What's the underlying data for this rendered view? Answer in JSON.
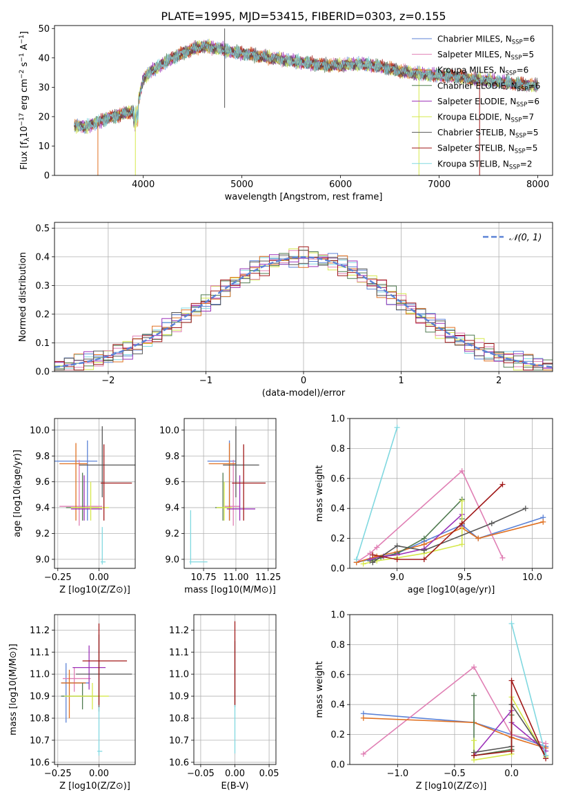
{
  "figure": {
    "title": "PLATE=1995, MJD=53415, FIBERID=0303, z=0.155"
  },
  "series_styles": [
    {
      "name": "Chabrier MILES, N_SSP=6",
      "label_main": "Chabrier MILES, N",
      "label_sub": "SSP",
      "label_tail": "=6",
      "color": "#5b82d6"
    },
    {
      "name": "Salpeter MILES, N_SSP=5",
      "label_main": "Salpeter MILES, N",
      "label_sub": "SSP",
      "label_tail": "=5",
      "color": "#e07fb4"
    },
    {
      "name": "Kroupa MILES, N_SSP=6",
      "label_main": "Kroupa MILES, N",
      "label_sub": "SSP",
      "label_tail": "=6",
      "color": "#e07020"
    },
    {
      "name": "Chabrier ELODIE, N_SSP=6",
      "label_main": "Chabrier ELODIE, N",
      "label_sub": "SSP",
      "label_tail": "=6",
      "color": "#4f7a4f"
    },
    {
      "name": "Salpeter ELODIE, N_SSP=6",
      "label_main": "Salpeter ELODIE, N",
      "label_sub": "SSP",
      "label_tail": "=6",
      "color": "#9b30b8"
    },
    {
      "name": "Kroupa ELODIE, N_SSP=7",
      "label_main": "Kroupa ELODIE, N",
      "label_sub": "SSP",
      "label_tail": "=7",
      "color": "#d5e84a"
    },
    {
      "name": "Chabrier STELIB, N_SSP=5",
      "label_main": "Chabrier STELIB, N",
      "label_sub": "SSP",
      "label_tail": "=5",
      "color": "#555555"
    },
    {
      "name": "Salpeter STELIB, N_SSP=5",
      "label_main": "Salpeter STELIB, N",
      "label_sub": "SSP",
      "label_tail": "=5",
      "color": "#a01818"
    },
    {
      "name": "Kroupa STELIB, N_SSP=2",
      "label_main": "Kroupa STELIB, N",
      "label_sub": "SSP",
      "label_tail": "=2",
      "color": "#80d8e0"
    }
  ],
  "chart_data": [
    {
      "id": "spectrum",
      "type": "line",
      "title": "PLATE=1995, MJD=53415, FIBERID=0303, z=0.155",
      "xlabel": "wavelength [Angstrom, rest frame]",
      "ylabel_parts": [
        "Flux [f",
        "λ",
        "10",
        "−17",
        " erg cm",
        "−2",
        " s",
        "−1",
        " A",
        "−1",
        "]"
      ],
      "xlim": [
        3100,
        8150
      ],
      "ylim": [
        0,
        51
      ],
      "xticks": [
        4000,
        5000,
        6000,
        7000,
        8000
      ],
      "yticks": [
        0,
        10,
        20,
        30,
        40,
        50
      ],
      "grid": false,
      "legend_position": "top-right",
      "continuum": {
        "x": [
          3300,
          3400,
          3500,
          3600,
          3700,
          3800,
          3900,
          3950,
          4000,
          4100,
          4200,
          4300,
          4400,
          4500,
          4600,
          4700,
          4800,
          4900,
          5000,
          5200,
          5400,
          5600,
          5800,
          6000,
          6200,
          6400,
          6600,
          6800,
          7000,
          7200,
          7400,
          7600,
          7800,
          8000
        ],
        "y": [
          17,
          16.5,
          17.5,
          19,
          20,
          21,
          22,
          25,
          33,
          36,
          38,
          40,
          41.5,
          43,
          44,
          43.5,
          43,
          42,
          41.5,
          40.5,
          39.5,
          38.5,
          37.5,
          37.5,
          38,
          37,
          35.5,
          34.5,
          34,
          33.5,
          32.5,
          32,
          31,
          30.5
        ]
      },
      "noise_amplitude": 2.5,
      "dropouts_x": [
        3540,
        3920,
        6795,
        7410
      ],
      "spike_x": 4825
    },
    {
      "id": "residuals",
      "type": "histogram",
      "xlabel": "(data-model)/error",
      "ylabel": "Normed distribution",
      "xlim": [
        -2.55,
        2.55
      ],
      "ylim": [
        0,
        0.52
      ],
      "xticks": [
        -2,
        -1,
        0,
        1,
        2
      ],
      "yticks": [
        0,
        0.1,
        0.2,
        0.3,
        0.4,
        0.5
      ],
      "grid": true,
      "bin_width": 0.1,
      "bin_start": -2.55,
      "legend": "𝒩(0, 1)",
      "reference_curve": {
        "name": "𝒩(0, 1)",
        "mean": 0,
        "sd": 1,
        "color": "#5b82d6"
      }
    },
    {
      "id": "age_vs_Z",
      "type": "scatter",
      "xlabel": "Z [log10(Z/Z⊙)]",
      "ylabel": "age [log10(age/yr)]",
      "xlim": [
        -0.27,
        0.22
      ],
      "ylim": [
        8.93,
        10.09
      ],
      "xticks": [
        -0.25,
        0.0
      ],
      "xtick_labels": [
        "−0.25",
        "0.00"
      ],
      "yticks": [
        9.0,
        9.2,
        9.4,
        9.6,
        9.8,
        10.0
      ],
      "grid": true,
      "points": [
        {
          "series": 0,
          "x": -0.07,
          "y": 9.76,
          "xerr": [
            0.2,
            0.06
          ],
          "yerr": [
            0.46,
            0.16
          ]
        },
        {
          "series": 1,
          "x": -0.12,
          "y": 9.41,
          "xerr": [
            0.12,
            0.14
          ],
          "yerr": [
            0.15,
            0.36
          ]
        },
        {
          "series": 2,
          "x": -0.14,
          "y": 9.74,
          "xerr": [
            0.1,
            0.07
          ],
          "yerr": [
            0.44,
            0.16
          ]
        },
        {
          "series": 3,
          "x": -0.1,
          "y": 9.4,
          "xerr": [
            0.1,
            0.1
          ],
          "yerr": [
            0.1,
            0.27
          ]
        },
        {
          "series": 4,
          "x": -0.09,
          "y": 9.39,
          "xerr": [
            0.08,
            0.11
          ],
          "yerr": [
            0.09,
            0.26
          ]
        },
        {
          "series": 5,
          "x": -0.05,
          "y": 9.4,
          "xerr": [
            0.12,
            0.11
          ],
          "yerr": [
            0.1,
            0.2
          ]
        },
        {
          "series": 6,
          "x": 0.02,
          "y": 9.73,
          "xerr": [
            0.14,
            0.2
          ],
          "yerr": [
            0.25,
            0.3
          ]
        },
        {
          "series": 7,
          "x": 0.03,
          "y": 9.59,
          "xerr": [
            0.02,
            0.17
          ],
          "yerr": [
            0.29,
            0.3
          ]
        },
        {
          "series": 8,
          "x": 0.02,
          "y": 8.98,
          "xerr": [
            0.01,
            0.02
          ],
          "yerr": [
            0.02,
            0.27
          ]
        }
      ]
    },
    {
      "id": "age_vs_mass",
      "type": "scatter",
      "xlabel": "mass [log10(M/M⊙)]",
      "ylabel": "",
      "xlim": [
        10.6,
        11.31
      ],
      "ylim": [
        8.93,
        10.09
      ],
      "xticks": [
        10.75,
        11.0,
        11.25
      ],
      "xtick_labels": [
        "10.75",
        "11.00",
        "11.25"
      ],
      "yticks": [
        9.0,
        9.2,
        9.4,
        9.6,
        9.8,
        10.0
      ],
      "grid": true,
      "points": [
        {
          "series": 0,
          "x": 10.95,
          "y": 9.76,
          "xerr": [
            0.17,
            0.05
          ],
          "yerr": [
            0.46,
            0.16
          ]
        },
        {
          "series": 1,
          "x": 10.98,
          "y": 9.41,
          "xerr": [
            0.07,
            0.05
          ],
          "yerr": [
            0.15,
            0.36
          ]
        },
        {
          "series": 2,
          "x": 10.95,
          "y": 9.74,
          "xerr": [
            0.16,
            0.05
          ],
          "yerr": [
            0.44,
            0.16
          ]
        },
        {
          "series": 3,
          "x": 10.9,
          "y": 9.4,
          "xerr": [
            0.06,
            0.06
          ],
          "yerr": [
            0.1,
            0.27
          ]
        },
        {
          "series": 4,
          "x": 11.03,
          "y": 9.39,
          "xerr": [
            0.1,
            0.12
          ],
          "yerr": [
            0.09,
            0.26
          ]
        },
        {
          "series": 5,
          "x": 10.91,
          "y": 9.4,
          "xerr": [
            0.06,
            0.06
          ],
          "yerr": [
            0.1,
            0.2
          ]
        },
        {
          "series": 6,
          "x": 11.0,
          "y": 9.73,
          "xerr": [
            0.1,
            0.18
          ],
          "yerr": [
            0.25,
            0.3
          ]
        },
        {
          "series": 7,
          "x": 11.06,
          "y": 9.59,
          "xerr": [
            0.09,
            0.17
          ],
          "yerr": [
            0.29,
            0.3
          ]
        },
        {
          "series": 8,
          "x": 10.65,
          "y": 8.98,
          "xerr": [
            0.01,
            0.13
          ],
          "yerr": [
            0.02,
            0.4
          ]
        }
      ]
    },
    {
      "id": "massweight_vs_age",
      "type": "line",
      "xlabel": "age [log10(age/yr)]",
      "ylabel": "mass weight",
      "xlim": [
        8.65,
        10.15
      ],
      "ylim": [
        0,
        1.0
      ],
      "xticks": [
        9.0,
        9.5,
        10.0
      ],
      "xtick_labels": [
        "9.0",
        "9.5",
        "10.0"
      ],
      "yticks": [
        0.0,
        0.2,
        0.4,
        0.6,
        0.8,
        1.0
      ],
      "grid": true,
      "series": [
        {
          "series": 0,
          "x": [
            8.7,
            8.85,
            9.0,
            9.2,
            9.48,
            9.6,
            10.08
          ],
          "y": [
            0.04,
            0.07,
            0.1,
            0.18,
            0.29,
            0.2,
            0.34
          ]
        },
        {
          "series": 1,
          "x": [
            8.7,
            8.8,
            8.85,
            9.48,
            9.78
          ],
          "y": [
            0.04,
            0.1,
            0.14,
            0.65,
            0.07
          ]
        },
        {
          "series": 2,
          "x": [
            8.7,
            8.85,
            9.0,
            9.2,
            9.48,
            9.6,
            10.08
          ],
          "y": [
            0.04,
            0.08,
            0.11,
            0.16,
            0.27,
            0.2,
            0.31
          ]
        },
        {
          "series": 3,
          "x": [
            8.8,
            8.88,
            9.0,
            9.2,
            9.48,
            9.48
          ],
          "y": [
            0.05,
            0.07,
            0.1,
            0.2,
            0.46,
            0.33
          ]
        },
        {
          "series": 4,
          "x": [
            8.8,
            8.9,
            9.0,
            9.2,
            9.48,
            9.48
          ],
          "y": [
            0.06,
            0.08,
            0.09,
            0.13,
            0.36,
            0.28
          ]
        },
        {
          "series": 5,
          "x": [
            8.75,
            8.85,
            9.0,
            9.2,
            9.48,
            9.48,
            9.48
          ],
          "y": [
            0.03,
            0.05,
            0.07,
            0.1,
            0.16,
            0.3,
            0.45
          ]
        },
        {
          "series": 6,
          "x": [
            8.82,
            9.0,
            9.2,
            9.7,
            9.95
          ],
          "y": [
            0.04,
            0.15,
            0.12,
            0.3,
            0.4
          ]
        },
        {
          "series": 7,
          "x": [
            8.82,
            9.0,
            9.2,
            9.48,
            9.78
          ],
          "y": [
            0.09,
            0.06,
            0.06,
            0.3,
            0.56
          ]
        },
        {
          "series": 8,
          "x": [
            8.7,
            9.0
          ],
          "y": [
            0.06,
            0.94
          ]
        }
      ]
    },
    {
      "id": "mass_vs_Z",
      "type": "scatter",
      "xlabel": "Z [log10(Z/Z⊙)]",
      "ylabel": "mass [log10(M/M⊙)]",
      "xlim": [
        -0.27,
        0.22
      ],
      "ylim": [
        10.59,
        11.27
      ],
      "xticks": [
        -0.25,
        0.0
      ],
      "xtick_labels": [
        "−0.25",
        "0.00"
      ],
      "yticks": [
        10.6,
        10.7,
        10.8,
        10.9,
        11.0,
        11.1,
        11.2
      ],
      "grid": true,
      "points": [
        {
          "series": 0,
          "x": -0.2,
          "y": 10.96,
          "xerr": [
            0.03,
            0.14
          ],
          "yerr": [
            0.18,
            0.09
          ]
        },
        {
          "series": 1,
          "x": -0.15,
          "y": 10.98,
          "xerr": [
            0.07,
            0.1
          ],
          "yerr": [
            0.06,
            0.05
          ]
        },
        {
          "series": 2,
          "x": -0.18,
          "y": 10.96,
          "xerr": [
            0.05,
            0.1
          ],
          "yerr": [
            0.16,
            0.06
          ]
        },
        {
          "series": 3,
          "x": -0.1,
          "y": 10.9,
          "xerr": [
            0.13,
            0.1
          ],
          "yerr": [
            0.06,
            0.06
          ]
        },
        {
          "series": 4,
          "x": -0.06,
          "y": 11.03,
          "xerr": [
            0.1,
            0.1
          ],
          "yerr": [
            0.1,
            0.1
          ]
        },
        {
          "series": 5,
          "x": -0.04,
          "y": 10.9,
          "xerr": [
            0.17,
            0.1
          ],
          "yerr": [
            0.06,
            0.06
          ]
        },
        {
          "series": 6,
          "x": 0.0,
          "y": 11.0,
          "xerr": [
            0.14,
            0.2
          ],
          "yerr": [
            0.17,
            0.18
          ]
        },
        {
          "series": 7,
          "x": 0.0,
          "y": 11.06,
          "xerr": [
            0.1,
            0.17
          ],
          "yerr": [
            0.2,
            0.17
          ]
        },
        {
          "series": 8,
          "x": 0.0,
          "y": 10.65,
          "xerr": [
            0.01,
            0.02
          ],
          "yerr": [
            0.02,
            0.2
          ]
        }
      ]
    },
    {
      "id": "mass_vs_EBV",
      "type": "scatter",
      "xlabel": "E(B-V)",
      "ylabel": "",
      "xlim": [
        -0.06,
        0.06
      ],
      "ylim": [
        10.59,
        11.27
      ],
      "xticks": [
        -0.05,
        0.0,
        0.05
      ],
      "xtick_labels": [
        "−0.05",
        "0.00",
        "0.05"
      ],
      "yticks": [
        10.6,
        10.7,
        10.8,
        10.9,
        11.0,
        11.1,
        11.2
      ],
      "grid": true,
      "points": [
        {
          "series": 6,
          "x": 0.0,
          "y": 11.0,
          "xerr": [
            0,
            0
          ],
          "yerr": [
            0.15,
            0.15
          ]
        },
        {
          "series": 7,
          "x": 0.0,
          "y": 11.06,
          "xerr": [
            0,
            0
          ],
          "yerr": [
            0.2,
            0.18
          ]
        },
        {
          "series": 8,
          "x": 0.0,
          "y": 10.66,
          "xerr": [
            0,
            0
          ],
          "yerr": [
            0.02,
            0.2
          ]
        }
      ]
    },
    {
      "id": "massweight_vs_Z",
      "type": "line",
      "xlabel": "Z [log10(Z/Z⊙)]",
      "ylabel": "mass weight",
      "xlim": [
        -1.42,
        0.36
      ],
      "ylim": [
        0,
        1.0
      ],
      "xticks": [
        -1.0,
        -0.5,
        0.0
      ],
      "xtick_labels": [
        "−1.0",
        "−0.5",
        "0.0"
      ],
      "yticks": [
        0.0,
        0.2,
        0.4,
        0.6,
        0.8,
        1.0
      ],
      "grid": true,
      "series": [
        {
          "series": 0,
          "x": [
            -1.3,
            -0.33,
            0.0,
            0.3
          ],
          "y": [
            0.34,
            0.28,
            0.2,
            0.12
          ]
        },
        {
          "series": 1,
          "x": [
            -1.3,
            -0.33,
            0.0,
            0.3
          ],
          "y": [
            0.07,
            0.65,
            0.2,
            0.14
          ]
        },
        {
          "series": 2,
          "x": [
            -1.3,
            -0.33,
            0.0,
            0.3
          ],
          "y": [
            0.31,
            0.28,
            0.18,
            0.11
          ]
        },
        {
          "series": 3,
          "x": [
            -0.33,
            -0.33,
            0.0,
            0.0
          ],
          "y": [
            0.46,
            0.06,
            0.1,
            0.33
          ]
        },
        {
          "series": 4,
          "x": [
            -0.33,
            0.0,
            0.0,
            0.3
          ],
          "y": [
            0.06,
            0.36,
            0.28,
            0.09
          ]
        },
        {
          "series": 5,
          "x": [
            -0.33,
            -0.33,
            0.0,
            0.0,
            0.3
          ],
          "y": [
            0.16,
            0.03,
            0.07,
            0.45,
            0.05
          ]
        },
        {
          "series": 6,
          "x": [
            -0.33,
            0.0,
            0.0,
            0.3
          ],
          "y": [
            0.08,
            0.12,
            0.4,
            0.06
          ]
        },
        {
          "series": 7,
          "x": [
            -0.33,
            0.0,
            0.0,
            0.3
          ],
          "y": [
            0.06,
            0.09,
            0.56,
            0.04
          ]
        },
        {
          "series": 8,
          "x": [
            0.0,
            0.3
          ],
          "y": [
            0.94,
            0.06
          ]
        }
      ]
    }
  ]
}
